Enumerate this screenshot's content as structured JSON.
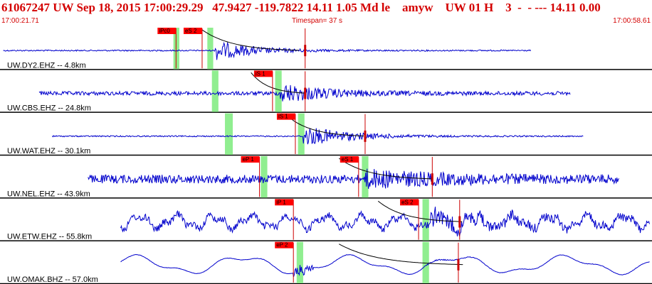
{
  "header": {
    "title": "61067247 UW Sep 18, 2015 17:00:29.29   47.9427 -119.7822 14.11 1.05 Md le    amyw    UW 01 H    3  -  - --- 14.11 0.00",
    "start_time": "17:00:21.71",
    "timespan": "Timespan=  37 s",
    "end_time": "17:00:58.61"
  },
  "colors": {
    "waveform": "#0000cc",
    "pick_line": "#cc0000",
    "pick_box": "#ff0000",
    "window": "#90ee90",
    "text_red": "#d40000"
  },
  "traces": [
    {
      "label": "UW.DY2.EHZ -- 4.8km",
      "wave_start": 0.005,
      "wave_end": 0.815,
      "noise": 0.03,
      "arrival": 0.33,
      "peak": 0.45,
      "decay": 0.06,
      "type": "hf",
      "windows": [
        [
          0.266,
          0.275
        ],
        [
          0.318,
          0.327
        ]
      ],
      "picks": [
        {
          "label": "iPc0",
          "pos": 0.27
        },
        {
          "label": "eS 2",
          "pos": 0.31
        },
        {
          "label": "",
          "pos": 0.468
        }
      ],
      "coda": {
        "start": 0.31,
        "end": 0.46
      }
    },
    {
      "label": "UW.CBS.EHZ -- 24.8km",
      "wave_start": 0.06,
      "wave_end": 0.875,
      "noise": 0.09,
      "arrival": 0.43,
      "peak": 0.42,
      "decay": 0.07,
      "type": "hf",
      "windows": [
        [
          0.325,
          0.335
        ],
        [
          0.422,
          0.432
        ]
      ],
      "picks": [
        {
          "label": "iS 1",
          "pos": 0.418
        },
        {
          "label": "",
          "pos": 0.468
        }
      ],
      "coda": {
        "start": 0.385,
        "end": 0.47
      }
    },
    {
      "label": "UW.WAT.EHZ -- 30.1km",
      "wave_start": 0.08,
      "wave_end": 0.895,
      "noise": 0.03,
      "arrival": 0.465,
      "peak": 0.48,
      "decay": 0.07,
      "type": "hf",
      "windows": [
        [
          0.345,
          0.357
        ],
        [
          0.457,
          0.467
        ]
      ],
      "picks": [
        {
          "label": "iS 1",
          "pos": 0.453
        },
        {
          "label": "",
          "pos": 0.56
        }
      ],
      "coda": {
        "start": 0.44,
        "end": 0.56
      }
    },
    {
      "label": "UW.NEL.EHZ -- 43.9km",
      "wave_start": 0.135,
      "wave_end": 0.95,
      "noise": 0.2,
      "arrival": 0.56,
      "peak": 0.32,
      "decay": 0.12,
      "type": "hf",
      "windows": [
        [
          0.4,
          0.41
        ],
        [
          0.555,
          0.565
        ]
      ],
      "picks": [
        {
          "label": "eP 1",
          "pos": 0.398
        },
        {
          "label": "eS 1",
          "pos": 0.55
        },
        {
          "label": "",
          "pos": 0.663
        }
      ],
      "coda": {
        "start": 0.52,
        "end": 0.665
      }
    },
    {
      "label": "UW.ETW.EHZ -- 55.8km",
      "wave_start": 0.185,
      "wave_end": 0.997,
      "noise": 0.16,
      "arrival": 0.66,
      "peak": 0.28,
      "decay": 0.12,
      "type": "lf",
      "windows": [
        [
          0.648,
          0.658
        ]
      ],
      "picks": [
        {
          "label": "iP 1",
          "pos": 0.45
        },
        {
          "label": "eS 2",
          "pos": 0.642
        },
        {
          "label": "",
          "pos": 0.705
        }
      ],
      "coda": {
        "start": 0.58,
        "end": 0.71
      }
    },
    {
      "label": "UW.OMAK.BHZ -- 57.0km",
      "wave_start": 0.185,
      "wave_end": 0.997,
      "noise": 0.01,
      "arrival": 0.65,
      "peak": 0.03,
      "decay": 0.05,
      "type": "lp",
      "windows": [
        [
          0.455,
          0.465
        ],
        [
          0.648,
          0.658
        ]
      ],
      "picks": [
        {
          "label": "eP 2",
          "pos": 0.45
        },
        {
          "label": "",
          "pos": 0.703
        }
      ],
      "coda": {
        "start": 0.52,
        "end": 0.71
      }
    }
  ]
}
